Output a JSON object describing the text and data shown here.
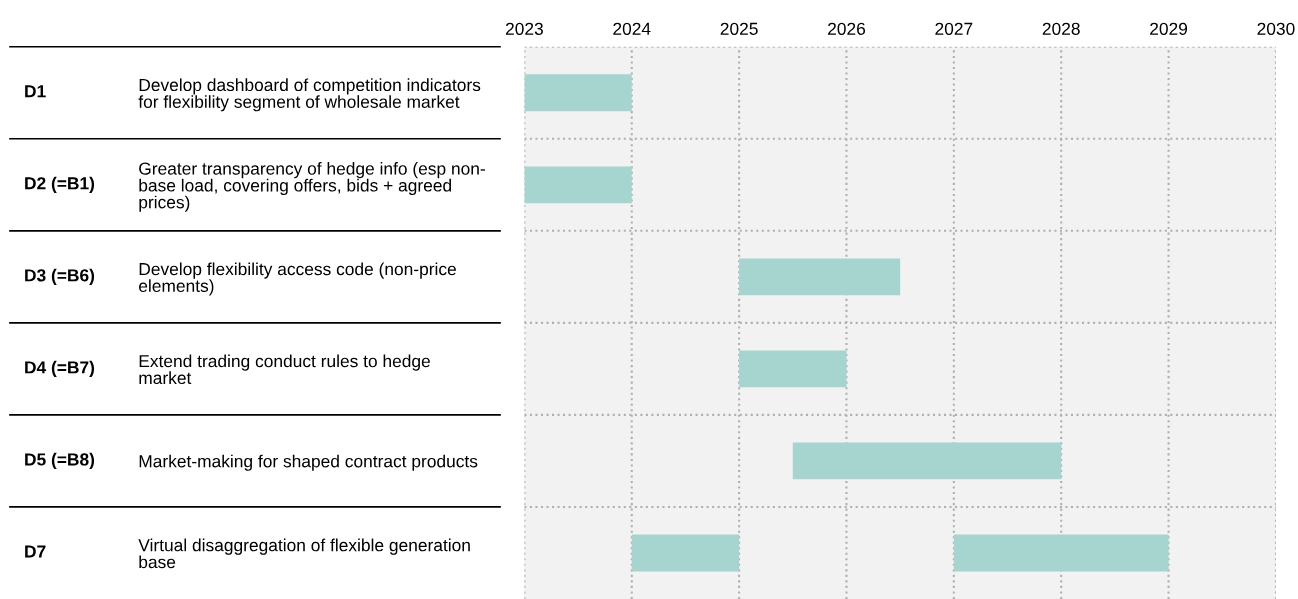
{
  "chart_data": {
    "type": "bar",
    "orientation": "horizontal",
    "categories": [
      "Develop dashboard of competition indicators\nfor flexibility segment of wholesale market",
      "Greater transparency of hedge info (esp non-\nbase load, covering offers, bids + agreed\nprices)",
      "Develop flexibility access code (non-price\nelements)",
      "Extend trading conduct rules to hedge\nmarket",
      "Market-making for shaped contract products",
      "Virtual disaggregation of flexible generation\nbase"
    ],
    "series": [
      {
        "color": "#a6d4ce",
        "values": [
          1,
          1,
          1.5,
          1,
          2.5,
          1
        ],
        "base": [
          2023,
          2023,
          2025,
          2025,
          2025.5,
          2024
        ]
      },
      {
        "color": "#a6d4ce",
        "values": [
          null,
          null,
          null,
          null,
          null,
          2
        ],
        "base": [
          null,
          null,
          null,
          null,
          null,
          2027
        ]
      }
    ],
    "xlim": [
      2023,
      2030
    ],
    "xticks": [
      2023,
      2024,
      2025,
      2026,
      2027,
      2028,
      2029,
      2030
    ],
    "grid": true,
    "annotations": [
      "D1",
      "D2 (=B1)",
      "D3 (=B6)",
      "D4 (=B7)",
      "D5 (=B8)",
      "D7"
    ]
  }
}
